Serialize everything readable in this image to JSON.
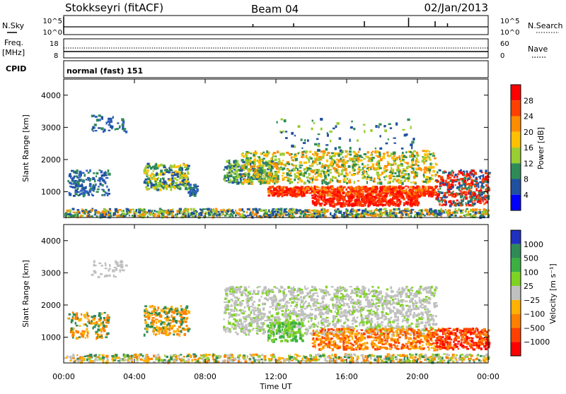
{
  "header": {
    "station": "Stokkseyri (fitACF)",
    "beam": "Beam 04",
    "date": "02/Jan/2013"
  },
  "noise_panel": {
    "left_label": "N.Sky",
    "right_label": "N.Search",
    "tick_top": "10^5",
    "tick_bottom": "10^0"
  },
  "freq_panel": {
    "left_label_1": "Freq.",
    "left_label_2": "[MHz]",
    "left_ticks": [
      "18",
      "8"
    ],
    "right_label": "Nave",
    "right_ticks": [
      "60",
      "0"
    ]
  },
  "cpid": {
    "label": "CPID",
    "mode": "normal (fast) 151"
  },
  "chart_data": [
    {
      "type": "heatmap",
      "title": "",
      "quantity": "Power",
      "colorbar_label": "Power [dB]",
      "colorbar_ticks": [
        "28",
        "24",
        "20",
        "16",
        "12",
        "8",
        "4"
      ],
      "colorbar_colors": [
        "#ff0000",
        "#ff4000",
        "#ff8c00",
        "#ffc000",
        "#9acd32",
        "#2e8b57",
        "#2050a0",
        "#0000ff"
      ],
      "ylabel": "Slant Range [km]",
      "yticks": [
        "4000",
        "3000",
        "2000",
        "1000"
      ],
      "ylim": [
        200,
        4500
      ],
      "xlim": [
        "00:00",
        "24:00"
      ]
    },
    {
      "type": "heatmap",
      "title": "",
      "quantity": "Velocity",
      "colorbar_label": "Velocity [m s⁻¹]",
      "colorbar_ticks": [
        "1000",
        "500",
        "100",
        "25",
        "−25",
        "−100",
        "−500",
        "−1000"
      ],
      "colorbar_colors": [
        "#2030c0",
        "#2e8b57",
        "#3cb043",
        "#7ed321",
        "#c0c0c0",
        "#ffb000",
        "#ff8000",
        "#ff4000",
        "#ff0000"
      ],
      "ylabel": "Slant Range [km]",
      "yticks": [
        "4000",
        "3000",
        "2000",
        "1000"
      ],
      "ylim": [
        200,
        4500
      ],
      "xlim": [
        "00:00",
        "24:00"
      ]
    }
  ],
  "x_axis": {
    "ticks": [
      "00:00",
      "04:00",
      "08:00",
      "12:00",
      "16:00",
      "20:00",
      "00:00"
    ],
    "label": "Time UT"
  }
}
